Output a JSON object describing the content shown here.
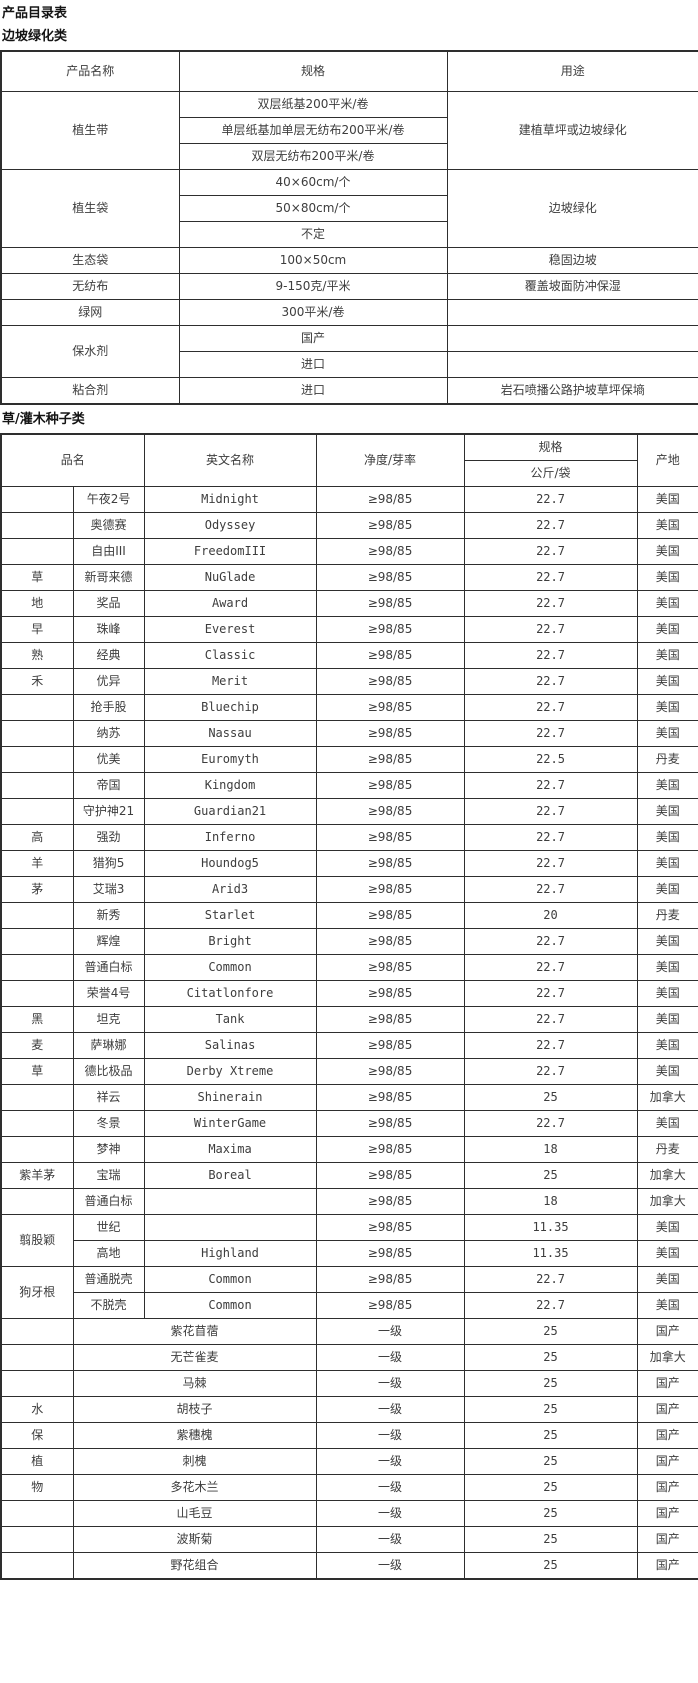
{
  "page": {
    "title": "产品目录表",
    "section1_title": "边坡绿化类",
    "section2_title": "草/灌木种子类"
  },
  "slope_table": {
    "headers": {
      "product_name": "产品名称",
      "spec": "规格",
      "use": "用途"
    },
    "groups": [
      {
        "name": "植生带",
        "specs": [
          "双层纸基200平米/卷",
          "单层纸基加单层无纺布200平米/卷",
          "双层无纺布200平米/卷"
        ],
        "use": "建植草坪或边坡绿化"
      },
      {
        "name": "植生袋",
        "specs": [
          "40×60cm/个",
          "50×80cm/个",
          "不定"
        ],
        "use": "边坡绿化"
      },
      {
        "name": "生态袋",
        "specs": [
          "100×50cm"
        ],
        "use": "稳固边坡"
      },
      {
        "name": "无纺布",
        "specs": [
          "9-150克/平米"
        ],
        "use": "覆盖坡面防冲保湿"
      },
      {
        "name": "绿网",
        "specs": [
          "300平米/卷"
        ],
        "use": ""
      },
      {
        "name": "保水剂",
        "specs": [
          "国产",
          "进口"
        ],
        "use": ""
      },
      {
        "name": "粘合剂",
        "specs": [
          "进口"
        ],
        "use": "岩石喷播公路护坡草坪保墒"
      }
    ]
  },
  "seed_table": {
    "headers": {
      "name": "品名",
      "english": "英文名称",
      "purity": "净度/芽率",
      "spec": "规格",
      "spec_sub": "公斤/袋",
      "origin": "产地"
    },
    "rows": [
      {
        "group": "",
        "name": "午夜2号",
        "en": "Midnight",
        "purity": "≥98/85",
        "kg": "22.7",
        "origin": "美国"
      },
      {
        "group": "",
        "name": "奥德赛",
        "en": "Odyssey",
        "purity": "≥98/85",
        "kg": "22.7",
        "origin": "美国"
      },
      {
        "group": "",
        "name": "自由III",
        "en": "FreedomIII",
        "purity": "≥98/85",
        "kg": "22.7",
        "origin": "美国"
      },
      {
        "group": "草",
        "name": "新哥来德",
        "en": "NuGlade",
        "purity": "≥98/85",
        "kg": "22.7",
        "origin": "美国"
      },
      {
        "group": "地",
        "name": "奖品",
        "en": "Award",
        "purity": "≥98/85",
        "kg": "22.7",
        "origin": "美国"
      },
      {
        "group": "早",
        "name": "珠峰",
        "en": "Everest",
        "purity": "≥98/85",
        "kg": "22.7",
        "origin": "美国"
      },
      {
        "group": "熟",
        "name": "经典",
        "en": "Classic",
        "purity": "≥98/85",
        "kg": "22.7",
        "origin": "美国"
      },
      {
        "group": "禾",
        "name": "优异",
        "en": "Merit",
        "purity": "≥98/85",
        "kg": "22.7",
        "origin": "美国"
      },
      {
        "group": "",
        "name": "抢手股",
        "en": "Bluechip",
        "purity": "≥98/85",
        "kg": "22.7",
        "origin": "美国"
      },
      {
        "group": "",
        "name": "纳苏",
        "en": "Nassau",
        "purity": "≥98/85",
        "kg": "22.7",
        "origin": "美国"
      },
      {
        "group": "",
        "name": "优美",
        "en": "Euromyth",
        "purity": "≥98/85",
        "kg": "22.5",
        "origin": "丹麦"
      },
      {
        "group": "",
        "name": "帝国",
        "en": "Kingdom",
        "purity": "≥98/85",
        "kg": "22.7",
        "origin": "美国"
      },
      {
        "group": "",
        "name": "守护神21",
        "en": "Guardian21",
        "purity": "≥98/85",
        "kg": "22.7",
        "origin": "美国"
      },
      {
        "group": "高",
        "name": "强劲",
        "en": "Inferno",
        "purity": "≥98/85",
        "kg": "22.7",
        "origin": "美国"
      },
      {
        "group": "羊",
        "name": "猎狗5",
        "en": "Houndog5",
        "purity": "≥98/85",
        "kg": "22.7",
        "origin": "美国"
      },
      {
        "group": "茅",
        "name": "艾瑞3",
        "en": "Arid3",
        "purity": "≥98/85",
        "kg": "22.7",
        "origin": "美国"
      },
      {
        "group": "",
        "name": "新秀",
        "en": "Starlet",
        "purity": "≥98/85",
        "kg": "20",
        "origin": "丹麦"
      },
      {
        "group": "",
        "name": "辉煌",
        "en": "Bright",
        "purity": "≥98/85",
        "kg": "22.7",
        "origin": "美国"
      },
      {
        "group": "",
        "name": "普通白标",
        "en": "Common",
        "purity": "≥98/85",
        "kg": "22.7",
        "origin": "美国"
      },
      {
        "group": "",
        "name": "荣誉4号",
        "en": "Citatlonfore",
        "purity": "≥98/85",
        "kg": "22.7",
        "origin": "美国"
      },
      {
        "group": "黑",
        "name": "坦克",
        "en": "Tank",
        "purity": "≥98/85",
        "kg": "22.7",
        "origin": "美国"
      },
      {
        "group": "麦",
        "name": "萨琳娜",
        "en": "Salinas",
        "purity": "≥98/85",
        "kg": "22.7",
        "origin": "美国"
      },
      {
        "group": "草",
        "name": "德比极品",
        "en": "Derby Xtreme",
        "purity": "≥98/85",
        "kg": "22.7",
        "origin": "美国"
      },
      {
        "group": "",
        "name": "祥云",
        "en": "Shinerain",
        "purity": "≥98/85",
        "kg": "25",
        "origin": "加拿大"
      },
      {
        "group": "",
        "name": "冬景",
        "en": "WinterGame",
        "purity": "≥98/85",
        "kg": "22.7",
        "origin": "美国"
      },
      {
        "group": "",
        "name": "梦神",
        "en": "Maxima",
        "purity": "≥98/85",
        "kg": "18",
        "origin": "丹麦"
      },
      {
        "group": "紫羊茅",
        "name": "宝瑞",
        "en": "Boreal",
        "purity": "≥98/85",
        "kg": "25",
        "origin": "加拿大"
      },
      {
        "group": "",
        "name": "普通白标",
        "en": "",
        "purity": "≥98/85",
        "kg": "18",
        "origin": "加拿大"
      },
      {
        "group": "翦股颖",
        "group_rowspan": 2,
        "name": "世纪",
        "en": "",
        "purity": "≥98/85",
        "kg": "11.35",
        "origin": "美国"
      },
      {
        "omit_group": true,
        "name": "高地",
        "en": "Highland",
        "purity": "≥98/85",
        "kg": "11.35",
        "origin": "美国"
      },
      {
        "group": "狗牙根",
        "group_rowspan": 2,
        "name": "普通脱壳",
        "en": "Common",
        "purity": "≥98/85",
        "kg": "22.7",
        "origin": "美国"
      },
      {
        "omit_group": true,
        "name": "不脱壳",
        "en": "Common",
        "purity": "≥98/85",
        "kg": "22.7",
        "origin": "美国"
      },
      {
        "group": "",
        "name": "紫花苜蓿",
        "merged": true,
        "purity": "一级",
        "kg": "25",
        "origin": "国产"
      },
      {
        "group": "",
        "name": "无芒雀麦",
        "merged": true,
        "purity": "一级",
        "kg": "25",
        "origin": "加拿大"
      },
      {
        "group": "",
        "name": "马棘",
        "merged": true,
        "purity": "一级",
        "kg": "25",
        "origin": "国产"
      },
      {
        "group": "水",
        "name": "胡枝子",
        "merged": true,
        "purity": "一级",
        "kg": "25",
        "origin": "国产"
      },
      {
        "group": "保",
        "name": "紫穗槐",
        "merged": true,
        "purity": "一级",
        "kg": "25",
        "origin": "国产"
      },
      {
        "group": "植",
        "name": "刺槐",
        "merged": true,
        "purity": "一级",
        "kg": "25",
        "origin": "国产"
      },
      {
        "group": "物",
        "name": "多花木兰",
        "merged": true,
        "purity": "一级",
        "kg": "25",
        "origin": "国产"
      },
      {
        "group": "",
        "name": "山毛豆",
        "merged": true,
        "purity": "一级",
        "kg": "25",
        "origin": "国产"
      },
      {
        "group": "",
        "name": "波斯菊",
        "merged": true,
        "purity": "一级",
        "kg": "25",
        "origin": "国产"
      },
      {
        "group": "",
        "name": "野花组合",
        "merged": true,
        "purity": "一级",
        "kg": "25",
        "origin": "国产"
      }
    ]
  }
}
